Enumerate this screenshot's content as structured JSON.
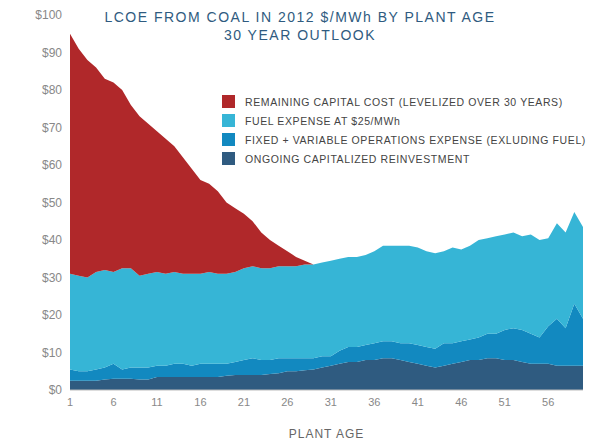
{
  "chart_data": {
    "type": "area",
    "title": "LCOE FROM COAL IN 2012 $/MWh BY PLANT AGE",
    "subtitle": "30 YEAR OUTLOOK",
    "x_label": "PLANT AGE",
    "stacked": true,
    "grid": false,
    "legend": "upper right",
    "x": [
      1,
      2,
      3,
      4,
      5,
      6,
      7,
      8,
      9,
      10,
      11,
      12,
      13,
      14,
      15,
      16,
      17,
      18,
      19,
      20,
      21,
      22,
      23,
      24,
      25,
      26,
      27,
      28,
      29,
      30,
      31,
      32,
      33,
      34,
      35,
      36,
      37,
      38,
      39,
      40,
      41,
      42,
      43,
      44,
      45,
      46,
      47,
      48,
      49,
      50,
      51,
      52,
      53,
      54,
      55,
      56,
      57,
      58,
      59,
      60
    ],
    "xlim": [
      1,
      60
    ],
    "xticks": [
      1,
      6,
      11,
      16,
      21,
      26,
      31,
      36,
      41,
      46,
      51,
      56
    ],
    "ylim": [
      0,
      100
    ],
    "yticks": [
      {
        "value": 0,
        "label": "$0"
      },
      {
        "value": 10,
        "label": "$10"
      },
      {
        "value": 20,
        "label": "$20"
      },
      {
        "value": 30,
        "label": "$30"
      },
      {
        "value": 40,
        "label": "$40"
      },
      {
        "value": 50,
        "label": "$50"
      },
      {
        "value": 60,
        "label": "$60"
      },
      {
        "value": 70,
        "label": "$70"
      },
      {
        "value": 80,
        "label": "$80"
      },
      {
        "value": 90,
        "label": "$90"
      },
      {
        "value": 100,
        "label": "$100"
      }
    ],
    "series": [
      {
        "name": "REMAINING CAPITAL COST (LEVELIZED OVER 30 YEARS)",
        "color": "#b0282a",
        "values": [
          64,
          60.5,
          58,
          54.5,
          51,
          50.5,
          47.5,
          43.5,
          42.5,
          40,
          37.5,
          36,
          33.5,
          31,
          28,
          25,
          23.5,
          22,
          19,
          17,
          14.5,
          12,
          9.5,
          7.5,
          5.5,
          4,
          2.5,
          1,
          0,
          0,
          0,
          0,
          0,
          0,
          0,
          0,
          0,
          0,
          0,
          0,
          0,
          0,
          0,
          0,
          0,
          0,
          0,
          0,
          0,
          0,
          0,
          0,
          0,
          0,
          0,
          0,
          0,
          0,
          0,
          0
        ]
      },
      {
        "name": "FUEL EXPENSE AT $25/MWh",
        "color": "#36b5d6",
        "values": [
          25.5,
          25.5,
          25,
          26,
          26,
          24.5,
          27,
          26.5,
          24.5,
          25,
          25,
          24.5,
          24.5,
          24,
          24.5,
          24,
          24.5,
          24,
          24,
          24,
          24.5,
          24.5,
          24.5,
          24.5,
          24.5,
          24.5,
          24.5,
          25,
          25,
          25,
          25.5,
          24.5,
          24,
          24,
          24,
          24.5,
          25.5,
          25.5,
          26,
          26,
          26,
          25.5,
          25.5,
          24.5,
          25.5,
          24.5,
          25,
          26,
          25.5,
          26,
          25.5,
          25.5,
          25,
          26.5,
          26,
          23.5,
          25.5,
          25.5,
          24.5,
          24.5
        ]
      },
      {
        "name": "FIXED + VARIABLE OPERATIONS EXPENSE (EXLUDING FUEL)",
        "color": "#1289c0",
        "values": [
          3,
          2.5,
          2.5,
          3,
          3.2,
          4,
          2.5,
          3,
          3.2,
          3.2,
          3,
          3,
          3.5,
          3.5,
          3,
          3.5,
          3.5,
          3.5,
          3.2,
          3.5,
          4,
          4.5,
          4,
          3.7,
          4,
          3.5,
          3.5,
          3.2,
          3,
          3,
          2.5,
          3.5,
          4,
          4,
          4,
          4.5,
          4.5,
          4.5,
          4.5,
          5,
          5,
          5,
          5,
          6,
          5.5,
          5.5,
          5.5,
          6,
          6.5,
          6.5,
          8,
          8.5,
          8.5,
          8,
          7,
          10,
          12.5,
          10,
          16.5,
          12.5
        ]
      },
      {
        "name": "ONGOING CAPITALIZED REINVESTMENT",
        "color": "#2f5b80",
        "values": [
          2.5,
          2.5,
          2.5,
          2.5,
          2.8,
          3,
          3,
          3,
          2.8,
          2.8,
          3.5,
          3.5,
          3.5,
          3.5,
          3.5,
          3.5,
          3.5,
          3.5,
          3.8,
          4,
          4,
          4,
          4,
          4.3,
          4.5,
          5,
          5,
          5.3,
          5.5,
          6,
          6.5,
          7,
          7.5,
          7.5,
          8,
          8,
          8.5,
          8.5,
          8,
          7.5,
          7,
          6.5,
          6,
          6.5,
          7,
          7.5,
          8,
          8,
          8.5,
          8.5,
          8,
          8,
          7.5,
          7,
          7,
          7,
          6.5,
          6.5,
          6.5,
          6.5
        ]
      }
    ]
  }
}
